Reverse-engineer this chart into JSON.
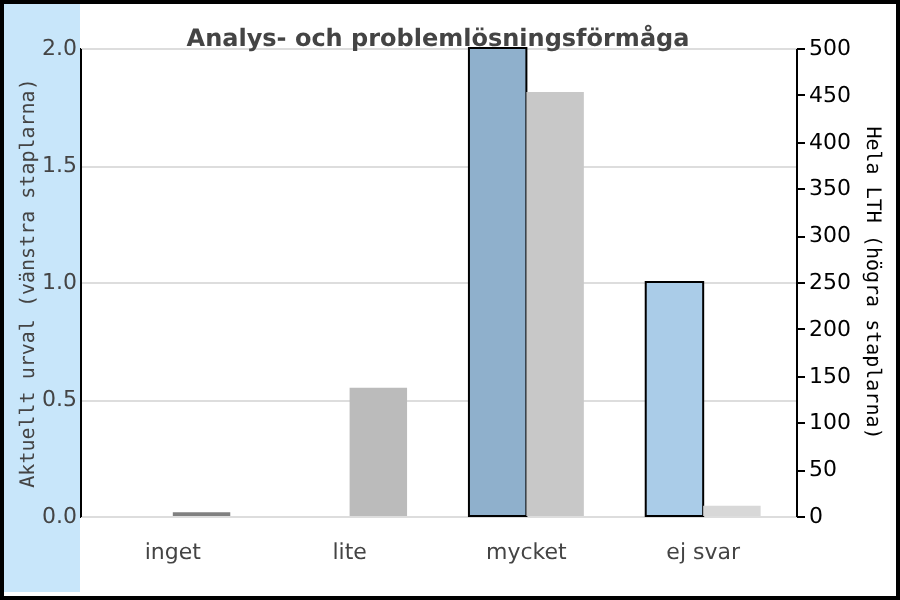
{
  "chart_data": {
    "type": "bar",
    "title": "Analys- och problemlösningsförmåga",
    "categories": [
      "inget",
      "lite",
      "mycket",
      "ej svar"
    ],
    "series": [
      {
        "colors": [
          "#8fb0cc",
          "#8fb0cc",
          "#8fb0cc",
          "#aacce8"
        ],
        "values": [
          0,
          0,
          2,
          1
        ]
      },
      {
        "colors": [
          "#808080",
          "#bbbbbb",
          "#c8c8c8",
          "#d8d8d8"
        ],
        "values": [
          4,
          137,
          453,
          11
        ],
        "axis": "y2"
      }
    ],
    "ylabel": "Aktuellt urval (vänstra staplarna)",
    "y2label": "Hela LTH (högra staplarna)",
    "ylim": [
      0,
      2
    ],
    "yticks": [
      {
        "value": 0,
        "label": "0.0"
      },
      0.5,
      {
        "value": 1,
        "label": "1.0"
      },
      1.5,
      {
        "value": 2,
        "label": "2.0"
      }
    ],
    "y2lim": [
      0,
      500
    ],
    "y2ticks": [
      0,
      50,
      100,
      150,
      200,
      250,
      300,
      350,
      400,
      450,
      500
    ],
    "grid": "y",
    "legend": false
  }
}
